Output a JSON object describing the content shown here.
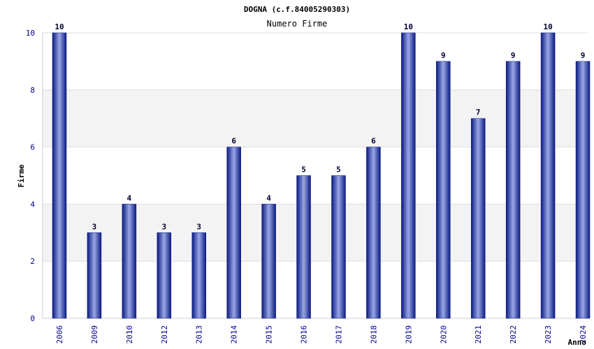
{
  "chart_data": {
    "type": "bar",
    "title": "DOGNA (c.f.84005290303)",
    "subtitle": "Numero Firme",
    "xlabel": "Anno",
    "ylabel": "Firme",
    "categories": [
      "2006",
      "2009",
      "2010",
      "2012",
      "2013",
      "2014",
      "2015",
      "2016",
      "2017",
      "2018",
      "2019",
      "2020",
      "2021",
      "2022",
      "2023",
      "2024"
    ],
    "values": [
      10,
      3,
      4,
      3,
      3,
      6,
      4,
      5,
      5,
      6,
      10,
      9,
      7,
      9,
      10,
      9
    ],
    "ylim": [
      0,
      10
    ],
    "yticks": [
      0,
      2,
      4,
      6,
      8,
      10
    ],
    "grid": true,
    "show_data_labels": true,
    "colors": {
      "bar_dark": "#0a1a80",
      "bar_light": "#9aa6e6",
      "band": "#f3f3f3",
      "gridline": "#dddddd",
      "tick_text": "#00008b"
    }
  }
}
